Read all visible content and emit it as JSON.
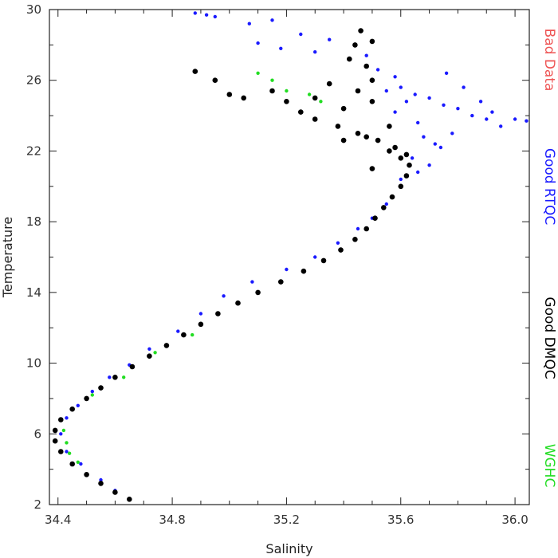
{
  "chart_data": {
    "type": "scatter",
    "xlabel": "Salinity",
    "ylabel": "Temperature",
    "xlim": [
      34.37,
      36.05
    ],
    "ylim": [
      2,
      30
    ],
    "x_ticks": [
      "34.4",
      "34.8",
      "35.2",
      "35.6",
      "36.0"
    ],
    "y_ticks": [
      "2",
      "6",
      "10",
      "14",
      "18",
      "22",
      "26",
      "30"
    ],
    "x_tick_values": [
      34.4,
      34.8,
      35.2,
      35.6,
      36.0
    ],
    "y_tick_values": [
      2,
      6,
      10,
      14,
      18,
      22,
      26,
      30
    ],
    "x_minor_step": 0.1,
    "y_minor_step": 2,
    "grid": false,
    "legend_position": "right",
    "series": [
      {
        "name": "Bad Data",
        "color": "#ee5555",
        "marker_size": "small",
        "points": []
      },
      {
        "name": "Good RTQC",
        "color": "#1a1aff",
        "marker_size": "small",
        "points": [
          [
            34.88,
            29.8
          ],
          [
            34.92,
            29.7
          ],
          [
            34.95,
            29.6
          ],
          [
            35.07,
            29.2
          ],
          [
            35.15,
            29.4
          ],
          [
            35.25,
            28.6
          ],
          [
            35.35,
            28.3
          ],
          [
            35.1,
            28.1
          ],
          [
            35.18,
            27.8
          ],
          [
            35.3,
            27.6
          ],
          [
            35.48,
            27.4
          ],
          [
            35.52,
            26.6
          ],
          [
            35.58,
            26.2
          ],
          [
            35.6,
            25.6
          ],
          [
            35.65,
            25.2
          ],
          [
            35.7,
            25.0
          ],
          [
            35.75,
            24.6
          ],
          [
            35.8,
            24.4
          ],
          [
            35.85,
            24.0
          ],
          [
            35.9,
            23.8
          ],
          [
            35.95,
            23.4
          ],
          [
            36.0,
            23.8
          ],
          [
            36.04,
            23.7
          ],
          [
            35.68,
            22.8
          ],
          [
            35.72,
            22.4
          ],
          [
            35.66,
            23.6
          ],
          [
            35.62,
            24.8
          ],
          [
            35.55,
            25.4
          ],
          [
            35.58,
            24.2
          ],
          [
            35.64,
            21.6
          ],
          [
            35.7,
            21.2
          ],
          [
            35.6,
            20.4
          ],
          [
            35.55,
            19.0
          ],
          [
            35.5,
            18.2
          ],
          [
            35.45,
            17.6
          ],
          [
            35.38,
            16.8
          ],
          [
            35.3,
            16.0
          ],
          [
            35.2,
            15.3
          ],
          [
            35.08,
            14.6
          ],
          [
            34.98,
            13.8
          ],
          [
            34.9,
            12.8
          ],
          [
            34.82,
            11.8
          ],
          [
            34.72,
            10.8
          ],
          [
            34.65,
            9.9
          ],
          [
            34.58,
            9.2
          ],
          [
            34.52,
            8.4
          ],
          [
            34.47,
            7.6
          ],
          [
            34.43,
            6.9
          ],
          [
            34.41,
            6.0
          ],
          [
            34.43,
            5.0
          ],
          [
            34.48,
            4.3
          ],
          [
            34.55,
            3.4
          ],
          [
            34.6,
            2.8
          ],
          [
            35.76,
            26.4
          ],
          [
            35.82,
            25.6
          ],
          [
            35.88,
            24.8
          ],
          [
            35.92,
            24.2
          ],
          [
            35.78,
            23.0
          ],
          [
            35.74,
            22.2
          ],
          [
            35.66,
            20.8
          ]
        ]
      },
      {
        "name": "Good DMQC",
        "color": "#000000",
        "marker_size": "large",
        "points": [
          [
            34.65,
            2.3
          ],
          [
            34.6,
            2.7
          ],
          [
            34.55,
            3.2
          ],
          [
            34.5,
            3.7
          ],
          [
            34.45,
            4.3
          ],
          [
            34.41,
            5.0
          ],
          [
            34.39,
            5.6
          ],
          [
            34.39,
            6.2
          ],
          [
            34.41,
            6.8
          ],
          [
            34.45,
            7.4
          ],
          [
            34.5,
            8.0
          ],
          [
            34.55,
            8.6
          ],
          [
            34.6,
            9.2
          ],
          [
            34.66,
            9.8
          ],
          [
            34.72,
            10.4
          ],
          [
            34.78,
            11.0
          ],
          [
            34.84,
            11.6
          ],
          [
            34.9,
            12.2
          ],
          [
            34.96,
            12.8
          ],
          [
            35.03,
            13.4
          ],
          [
            35.1,
            14.0
          ],
          [
            35.18,
            14.6
          ],
          [
            35.26,
            15.2
          ],
          [
            35.33,
            15.8
          ],
          [
            35.39,
            16.4
          ],
          [
            35.44,
            17.0
          ],
          [
            35.48,
            17.6
          ],
          [
            35.51,
            18.2
          ],
          [
            35.54,
            18.8
          ],
          [
            35.57,
            19.4
          ],
          [
            35.6,
            20.0
          ],
          [
            35.62,
            20.6
          ],
          [
            35.63,
            21.2
          ],
          [
            35.62,
            21.8
          ],
          [
            35.58,
            22.2
          ],
          [
            35.52,
            22.6
          ],
          [
            35.45,
            23.0
          ],
          [
            35.38,
            23.4
          ],
          [
            35.3,
            23.8
          ],
          [
            35.25,
            24.2
          ],
          [
            35.4,
            24.4
          ],
          [
            35.5,
            24.8
          ],
          [
            35.45,
            25.4
          ],
          [
            35.5,
            26.0
          ],
          [
            35.48,
            26.8
          ],
          [
            35.42,
            27.2
          ],
          [
            35.44,
            28.0
          ],
          [
            35.5,
            28.2
          ],
          [
            35.46,
            28.8
          ],
          [
            34.88,
            26.5
          ],
          [
            34.95,
            26.0
          ],
          [
            35.0,
            25.2
          ],
          [
            35.05,
            25.0
          ],
          [
            35.15,
            25.4
          ],
          [
            35.2,
            24.8
          ],
          [
            35.3,
            25.0
          ],
          [
            35.35,
            25.8
          ],
          [
            35.56,
            22.0
          ],
          [
            35.6,
            21.6
          ],
          [
            35.5,
            21.0
          ],
          [
            35.48,
            22.8
          ],
          [
            35.4,
            22.6
          ],
          [
            35.56,
            23.4
          ]
        ]
      },
      {
        "name": "WGHC",
        "color": "#22dd22",
        "marker_size": "small",
        "points": [
          [
            34.42,
            6.2
          ],
          [
            34.43,
            5.5
          ],
          [
            34.44,
            4.9
          ],
          [
            34.47,
            4.4
          ],
          [
            34.52,
            8.2
          ],
          [
            34.63,
            9.2
          ],
          [
            34.74,
            10.6
          ],
          [
            34.87,
            11.6
          ],
          [
            35.1,
            26.4
          ],
          [
            35.15,
            26.0
          ],
          [
            35.2,
            25.4
          ],
          [
            35.28,
            25.2
          ],
          [
            35.32,
            24.8
          ]
        ]
      }
    ]
  }
}
